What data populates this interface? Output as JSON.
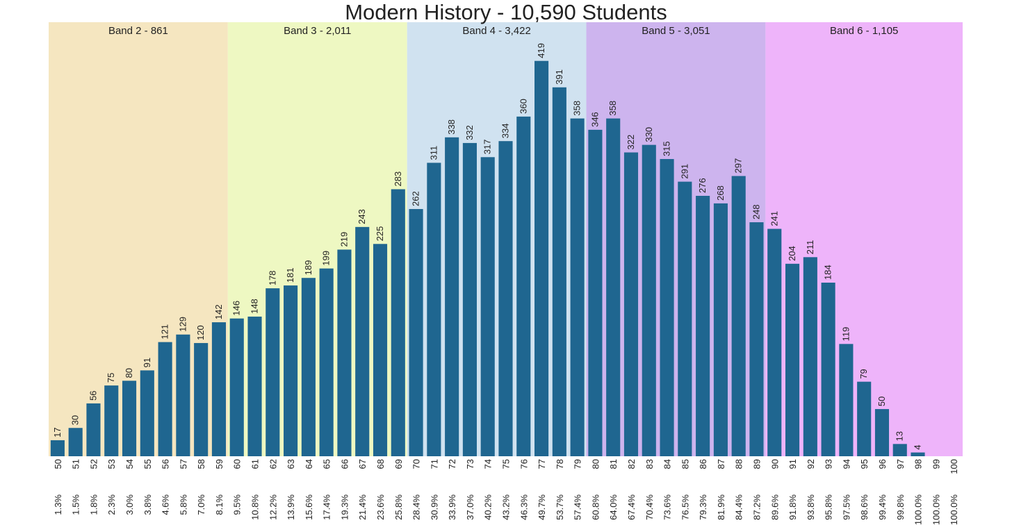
{
  "chart_data": {
    "type": "bar",
    "title": "Modern History - 10,590 Students",
    "xlabel": "",
    "ylabel": "",
    "ylim": [
      0,
      460
    ],
    "grid": false,
    "bar_color": "#1f6690",
    "categories": [
      "50",
      "51",
      "52",
      "53",
      "54",
      "55",
      "56",
      "57",
      "58",
      "59",
      "60",
      "61",
      "62",
      "63",
      "64",
      "65",
      "66",
      "67",
      "68",
      "69",
      "70",
      "71",
      "72",
      "73",
      "74",
      "75",
      "76",
      "77",
      "78",
      "79",
      "80",
      "81",
      "82",
      "83",
      "84",
      "85",
      "86",
      "87",
      "88",
      "89",
      "90",
      "91",
      "92",
      "93",
      "94",
      "95",
      "96",
      "97",
      "98",
      "99",
      "100"
    ],
    "values": [
      17,
      30,
      56,
      75,
      80,
      91,
      121,
      129,
      120,
      142,
      146,
      148,
      178,
      181,
      189,
      199,
      219,
      243,
      225,
      283,
      262,
      311,
      338,
      332,
      317,
      334,
      360,
      419,
      391,
      358,
      346,
      358,
      322,
      330,
      315,
      291,
      276,
      268,
      297,
      248,
      241,
      204,
      211,
      184,
      119,
      79,
      50,
      13,
      4,
      0,
      0
    ],
    "value_labels": [
      "17",
      "30",
      "56",
      "75",
      "80",
      "91",
      "121",
      "129",
      "120",
      "142",
      "146",
      "148",
      "178",
      "181",
      "189",
      "199",
      "219",
      "243",
      "225",
      "283",
      "262",
      "311",
      "338",
      "332",
      "317",
      "334",
      "360",
      "419",
      "391",
      "358",
      "346",
      "358",
      "322",
      "330",
      "315",
      "291",
      "276",
      "268",
      "297",
      "248",
      "241",
      "204",
      "211",
      "184",
      "119",
      "79",
      "50",
      "13",
      "4",
      "",
      ""
    ],
    "cumulative_percent": [
      "1.3%",
      "1.5%",
      "1.8%",
      "2.3%",
      "3.0%",
      "3.8%",
      "4.6%",
      "5.8%",
      "7.0%",
      "8.1%",
      "9.5%",
      "10.8%",
      "12.2%",
      "13.9%",
      "15.6%",
      "17.4%",
      "19.3%",
      "21.4%",
      "23.6%",
      "25.8%",
      "28.4%",
      "30.9%",
      "33.9%",
      "37.0%",
      "40.2%",
      "43.2%",
      "46.3%",
      "49.7%",
      "53.7%",
      "57.4%",
      "60.8%",
      "64.0%",
      "67.4%",
      "70.4%",
      "73.6%",
      "76.5%",
      "79.3%",
      "81.9%",
      "84.4%",
      "87.2%",
      "89.6%",
      "91.8%",
      "93.8%",
      "95.8%",
      "97.5%",
      "98.6%",
      "99.4%",
      "99.8%",
      "100.0%",
      "100.0%",
      "100.0%"
    ],
    "bands": [
      {
        "label": "Band 2 - 861",
        "start": "50",
        "end": "59",
        "color": "#f5e6c0"
      },
      {
        "label": "Band 3 - 2,011",
        "start": "60",
        "end": "69",
        "color": "#eef8c2"
      },
      {
        "label": "Band 4 - 3,422",
        "start": "70",
        "end": "79",
        "color": "#d0e2f0"
      },
      {
        "label": "Band 5 - 3,051",
        "start": "80",
        "end": "89",
        "color": "#cdb4ee"
      },
      {
        "label": "Band 6 - 1,105",
        "start": "90",
        "end": "100",
        "color": "#eeb4fa"
      }
    ]
  }
}
